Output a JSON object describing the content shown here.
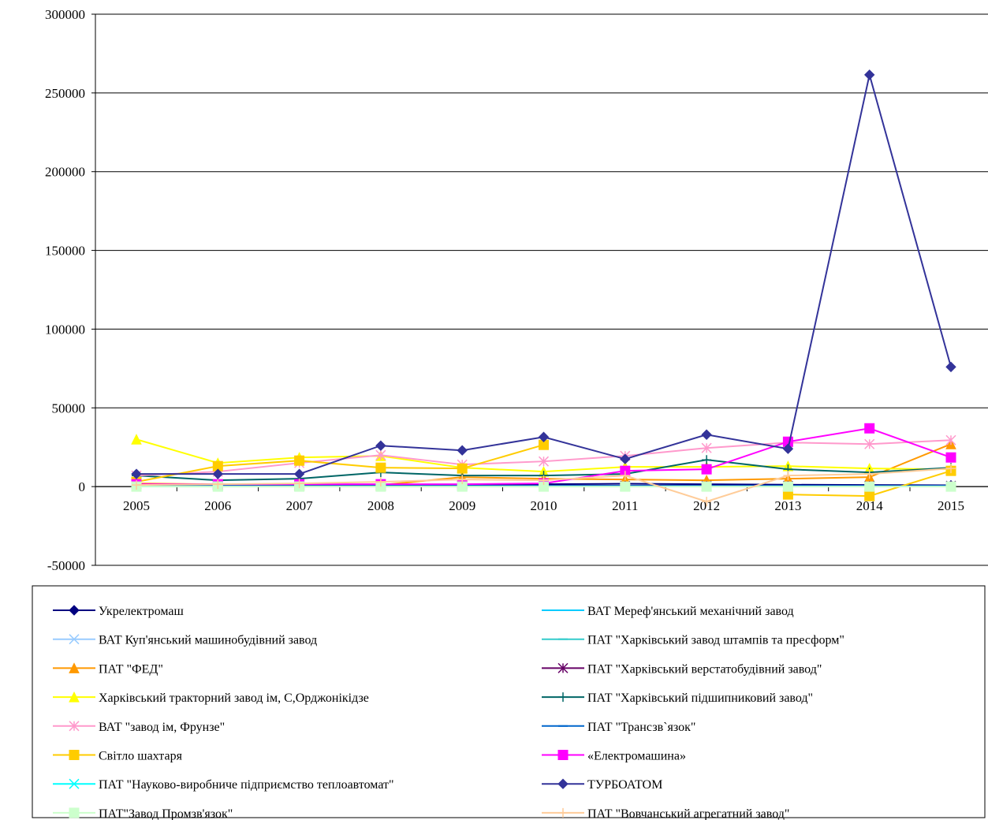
{
  "chart_data": {
    "type": "line",
    "title": "",
    "xlabel": "",
    "ylabel": "",
    "categories": [
      "2005",
      "2006",
      "2007",
      "2008",
      "2009",
      "2010",
      "2011",
      "2012",
      "2013",
      "2014",
      "2015"
    ],
    "ylim": [
      -50000,
      300000
    ],
    "yticks": [
      300000,
      250000,
      200000,
      150000,
      100000,
      50000,
      0,
      -50000
    ],
    "ytick_labels": [
      "300000",
      "250000",
      "200000",
      "150000",
      "100000",
      "50000",
      "0",
      "-50000"
    ],
    "grid": "horizontal",
    "legend_position": "bottom",
    "series": [
      {
        "name": "Укрелектромаш",
        "color": "#000080",
        "marker": "diamond",
        "values": [
          500,
          500,
          800,
          1000,
          1200,
          1500,
          1800,
          1500,
          1200,
          1000,
          800
        ]
      },
      {
        "name": "ВАТ Мереф'янський механічний завод",
        "color": "#00CCFF",
        "marker": "dash",
        "values": [
          300,
          300,
          300,
          300,
          300,
          300,
          300,
          300,
          300,
          300,
          300
        ]
      },
      {
        "name": "ВАТ Куп'янський машинобудівний завод",
        "color": "#99CCFF",
        "marker": "x",
        "values": [
          200,
          200,
          200,
          200,
          200,
          200,
          200,
          200,
          200,
          200,
          200
        ]
      },
      {
        "name": "ПАТ \"Харківський завод штампів та пресформ\"",
        "color": "#33CCCC",
        "marker": "dash",
        "values": [
          400,
          400,
          400,
          400,
          400,
          400,
          400,
          400,
          400,
          400,
          400
        ]
      },
      {
        "name": "ПАТ \"ФЕД\"",
        "color": "#FF9900",
        "marker": "triangle",
        "values": [
          2000,
          1500,
          1000,
          1000,
          6000,
          5000,
          4500,
          4000,
          5000,
          6000,
          27000
        ]
      },
      {
        "name": "ПАТ \"Харківський верстатобудівний завод\"",
        "color": "#660066",
        "marker": "star",
        "values": [
          500,
          500,
          500,
          500,
          500,
          500,
          500,
          500,
          500,
          500,
          500
        ]
      },
      {
        "name": "Харківський тракторний завод ім, С,Орджонікідзе",
        "color": "#FFFF00",
        "marker": "triangle",
        "values": [
          30000,
          15000,
          18500,
          19500,
          12000,
          9500,
          12500,
          12500,
          13000,
          11500,
          11000
        ]
      },
      {
        "name": "ПАТ \"Харківський підшипниковий завод\"",
        "color": "#006666",
        "marker": "plus",
        "values": [
          7000,
          4000,
          5000,
          9000,
          7000,
          7000,
          8000,
          17000,
          11000,
          9000,
          12000
        ]
      },
      {
        "name": "ВАТ \"завод ім, Фрунзе\"",
        "color": "#FF99CC",
        "marker": "star",
        "values": [
          7000,
          9500,
          15000,
          20000,
          14000,
          16000,
          19500,
          24500,
          28000,
          27000,
          29500
        ]
      },
      {
        "name": "ПАТ \"Трансзв`язок\"",
        "color": "#0066CC",
        "marker": "dash",
        "values": [
          500,
          500,
          500,
          500,
          500,
          500,
          500,
          500,
          500,
          500,
          500
        ]
      },
      {
        "name": "Світло шахтаря",
        "color": "#FFCC00",
        "marker": "square",
        "values": [
          3000,
          13000,
          16500,
          12000,
          11500,
          26500,
          null,
          null,
          -5000,
          -6000,
          10000
        ]
      },
      {
        "name": "«Електромашина»",
        "color": "#FF00FF",
        "marker": "square",
        "values": [
          1500,
          1500,
          1500,
          1500,
          1500,
          2000,
          10000,
          11000,
          28500,
          37000,
          18500
        ]
      },
      {
        "name": "ПАТ \"Науково-виробниче підприємство теплоавтомат\"",
        "color": "#00FFFF",
        "marker": "x",
        "values": [
          100,
          100,
          100,
          100,
          100,
          100,
          100,
          100,
          100,
          100,
          100
        ]
      },
      {
        "name": "ТУРБОАТОМ",
        "color": "#333399",
        "marker": "diamond",
        "values": [
          8000,
          8000,
          8000,
          26000,
          23000,
          31500,
          17500,
          33000,
          24000,
          261500,
          76000
        ]
      },
      {
        "name": "ПАТ\"Завод Промзв'язок\"",
        "color": "#CCFFCC",
        "marker": "square",
        "values": [
          0,
          0,
          0,
          0,
          0,
          0,
          0,
          0,
          0,
          0,
          0
        ]
      },
      {
        "name": "ПАТ \"Вовчанський агрегатний завод\"",
        "color": "#FFCC99",
        "marker": "plus",
        "values": [
          1000,
          1500,
          2000,
          3000,
          4500,
          4000,
          7000,
          -9500,
          7000,
          8000,
          11500
        ]
      }
    ]
  }
}
